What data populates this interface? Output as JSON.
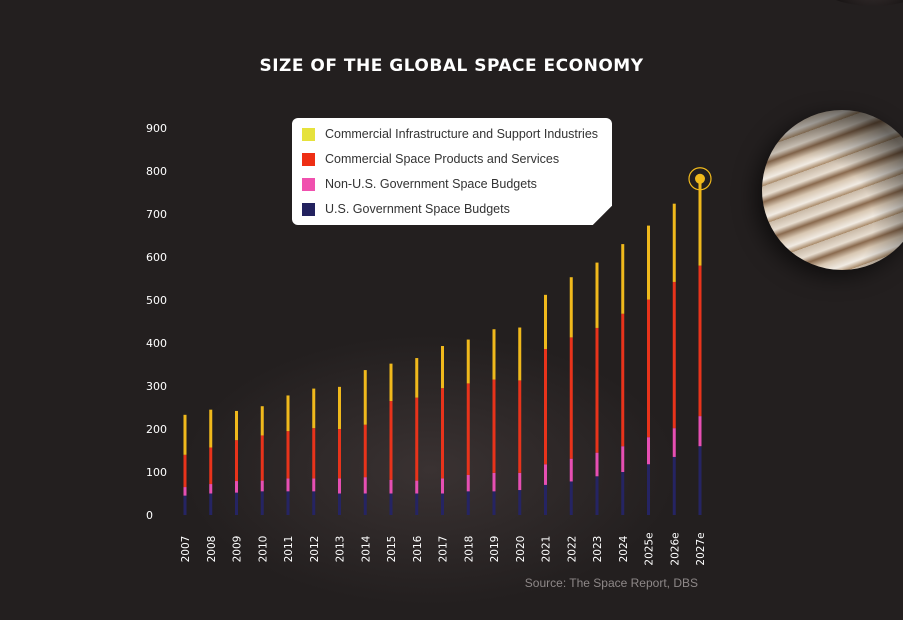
{
  "title": "SIZE OF THE GLOBAL SPACE ECONOMY",
  "source": "Source: The Space Report, DBS",
  "colors": {
    "commercial_infrastructure": "#f0b91c",
    "commercial_products": "#e8331b",
    "non_us_government": "#e64fb3",
    "us_government": "#252463",
    "background": "#231f1f",
    "axis_text": "#ffffff"
  },
  "legend": [
    {
      "label": "Commercial Infrastructure and Support Industries",
      "color": "#e6e23c"
    },
    {
      "label": "Commercial Space Products and Services",
      "color": "#ee2e14"
    },
    {
      "label": "Non-U.S. Government Space Budgets",
      "color": "#f050ae"
    },
    {
      "label": "U.S. Government Space Budgets",
      "color": "#23225f"
    }
  ],
  "chart_data": {
    "type": "bar",
    "stacked": true,
    "title": "SIZE OF THE GLOBAL SPACE ECONOMY",
    "xlabel": "",
    "ylabel": "",
    "ylim": [
      0,
      900
    ],
    "yticks": [
      0,
      100,
      200,
      300,
      400,
      500,
      600,
      700,
      800,
      900
    ],
    "categories": [
      "2007",
      "2008",
      "2009",
      "2010",
      "2011",
      "2012",
      "2013",
      "2014",
      "2015",
      "2016",
      "2017",
      "2018",
      "2019",
      "2020",
      "2021",
      "2022",
      "2023",
      "2024",
      "2025e",
      "2026e",
      "2027e"
    ],
    "series": [
      {
        "name": "U.S. Government Space Budgets",
        "key": "us_government",
        "values": [
          45,
          50,
          52,
          55,
          55,
          55,
          50,
          50,
          50,
          50,
          50,
          55,
          55,
          58,
          70,
          78,
          90,
          100,
          118,
          135,
          160
        ]
      },
      {
        "name": "Non-U.S. Government Space Budgets",
        "key": "non_us_government",
        "values": [
          20,
          22,
          27,
          25,
          30,
          30,
          35,
          38,
          32,
          30,
          35,
          38,
          43,
          40,
          48,
          53,
          55,
          60,
          63,
          67,
          70
        ]
      },
      {
        "name": "Commercial Space Products and Services",
        "key": "commercial_products",
        "values": [
          75,
          85,
          95,
          105,
          110,
          117,
          115,
          122,
          183,
          193,
          210,
          213,
          217,
          215,
          268,
          282,
          290,
          308,
          320,
          340,
          350
        ]
      },
      {
        "name": "Commercial Infrastructure and Support Industries",
        "key": "commercial_infrastructure",
        "values": [
          93,
          88,
          68,
          68,
          83,
          92,
          98,
          127,
          87,
          92,
          98,
          102,
          117,
          123,
          126,
          140,
          152,
          162,
          172,
          182,
          202
        ]
      }
    ],
    "highlight": {
      "category": "2027e",
      "total": 782
    },
    "legend_position": "top-center"
  }
}
